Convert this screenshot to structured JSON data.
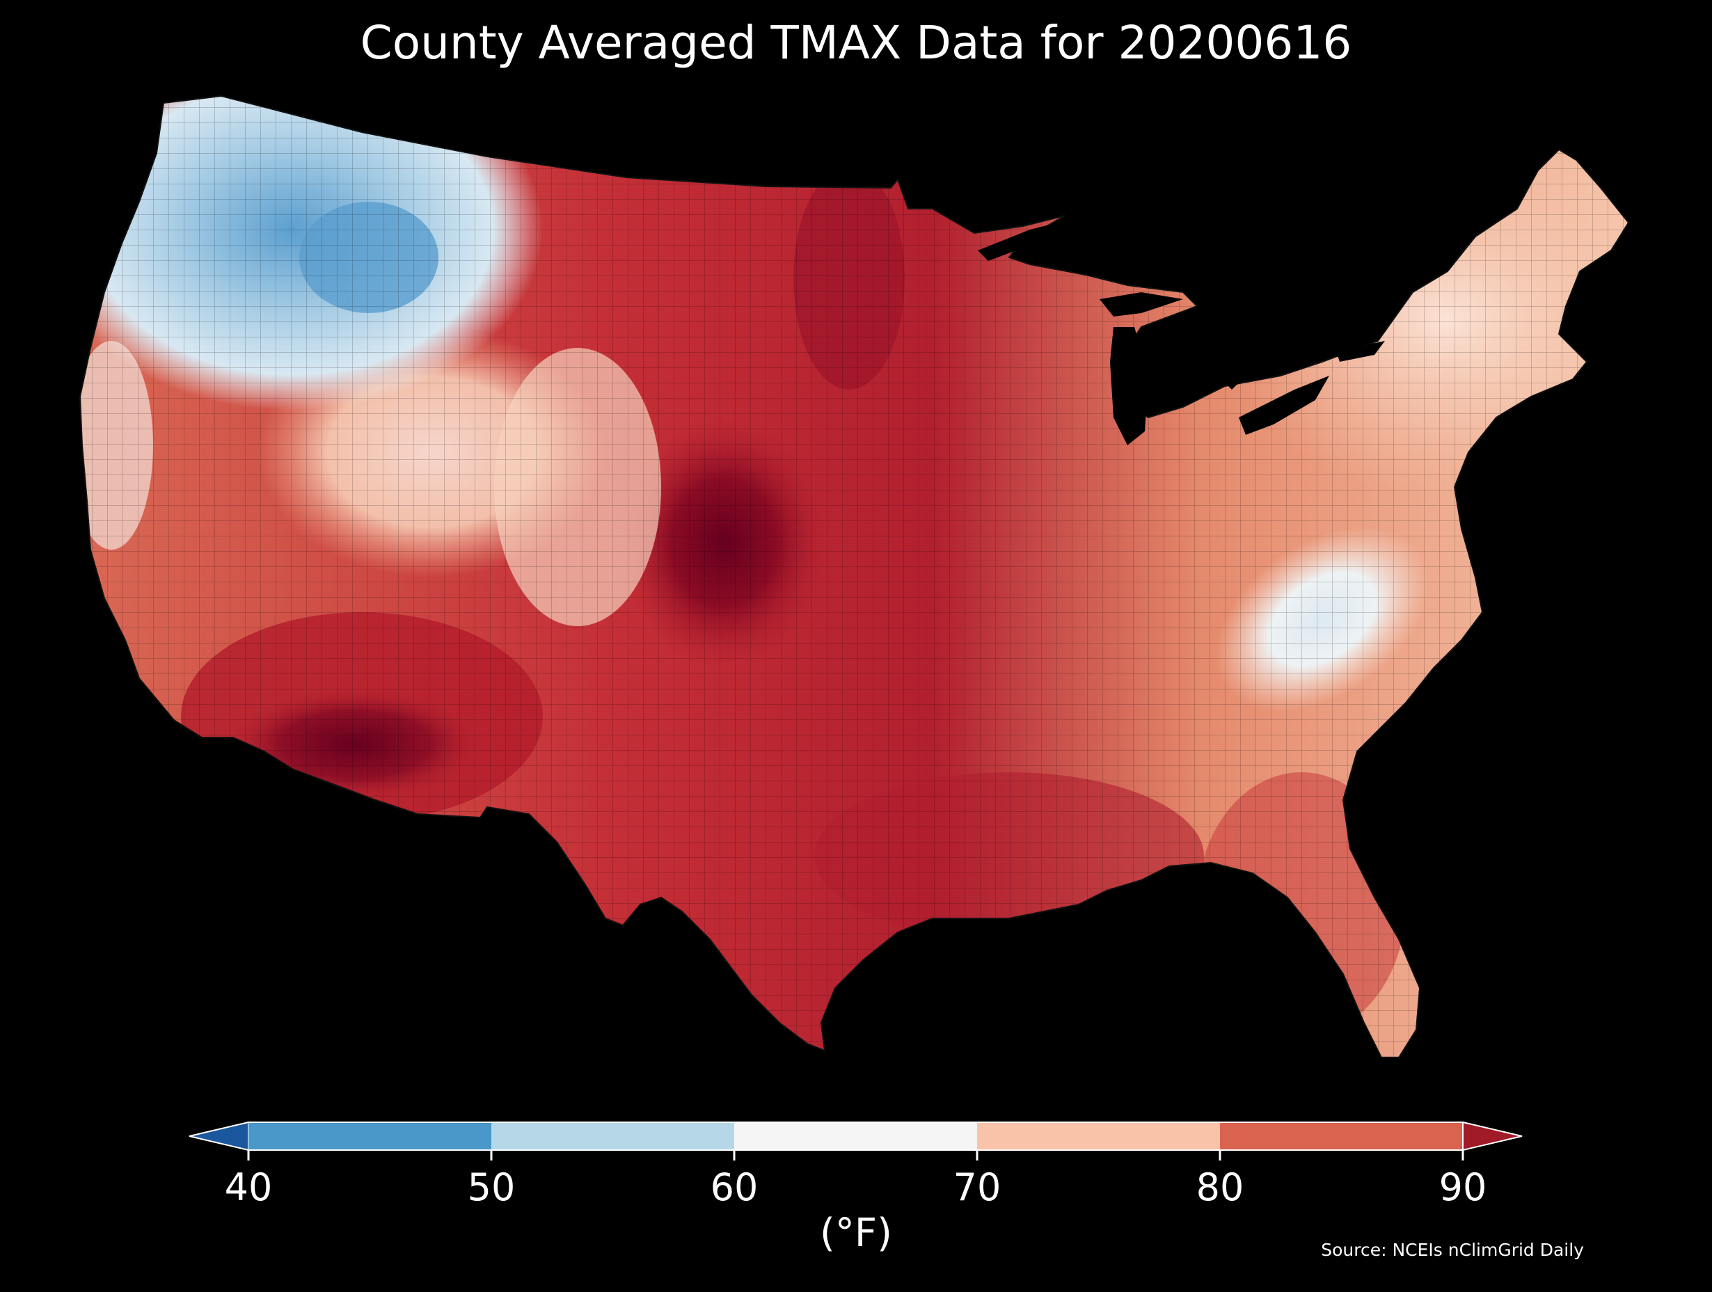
{
  "title": "County Averaged TMAX Data for 20200616",
  "source": "Source: NCEIs nClimGrid Daily",
  "colorbar": {
    "unit": "(°F)",
    "ticks": [
      "40",
      "50",
      "60",
      "70",
      "80",
      "90"
    ],
    "bins": [
      {
        "range": "<40",
        "color": "#1a579d"
      },
      {
        "range": "40-50",
        "color": "#4a97c9"
      },
      {
        "range": "50-60",
        "color": "#b6d7e8"
      },
      {
        "range": "60-70",
        "color": "#f5f5f5"
      },
      {
        "range": "70-80",
        "color": "#f9c3a9"
      },
      {
        "range": "80-90",
        "color": "#d9634f"
      },
      {
        "range": ">90",
        "color": "#a11a28"
      }
    ],
    "extend": "both"
  },
  "map": {
    "region": "Contiguous United States",
    "units": "counties",
    "variable": "TMAX",
    "date": "20200616",
    "palette": {
      "cold": "#6fafd6",
      "cool": "#c6deed",
      "neutral": "#f3f3f3",
      "warm": "#f6c1a5",
      "hot": "#d0534a",
      "hotter": "#b11f2e",
      "extreme": "#67001f"
    }
  }
}
